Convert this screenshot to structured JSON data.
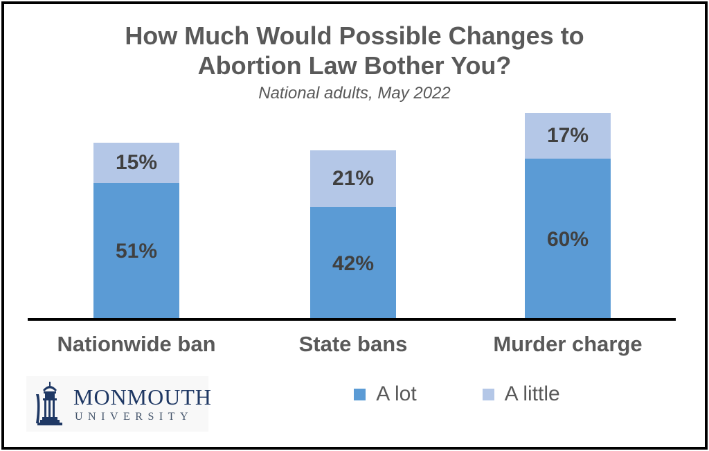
{
  "title": {
    "line1": "How Much Would Possible Changes to",
    "line2": "Abortion Law Bother You?",
    "subtitle": "National adults, May 2022"
  },
  "chart_data": {
    "type": "bar",
    "stacked": true,
    "categories": [
      "Nationwide ban",
      "State bans",
      "Murder charge"
    ],
    "series": [
      {
        "name": "A lot",
        "color": "#5b9bd5",
        "values": [
          51,
          42,
          60
        ]
      },
      {
        "name": "A little",
        "color": "#b4c7e7",
        "values": [
          15,
          21,
          17
        ]
      }
    ],
    "value_suffix": "%",
    "ylim": [
      0,
      100
    ],
    "grid": false,
    "legend_position": "bottom-center",
    "value_label_color": "#404040",
    "category_label_color": "#595959",
    "axis_line_color": "#000000",
    "totals": [
      66,
      63,
      77
    ]
  },
  "legend": {
    "items": [
      {
        "label": "A lot",
        "color": "#5b9bd5"
      },
      {
        "label": "A little",
        "color": "#b4c7e7"
      }
    ]
  },
  "logo": {
    "name": "MONMOUTH",
    "subname": "UNIVERSITY",
    "primary_color": "#1f3864",
    "secondary_color": "#44546a"
  },
  "colors": {
    "background": "#ffffff",
    "border": "#000000",
    "title_text": "#595959"
  }
}
